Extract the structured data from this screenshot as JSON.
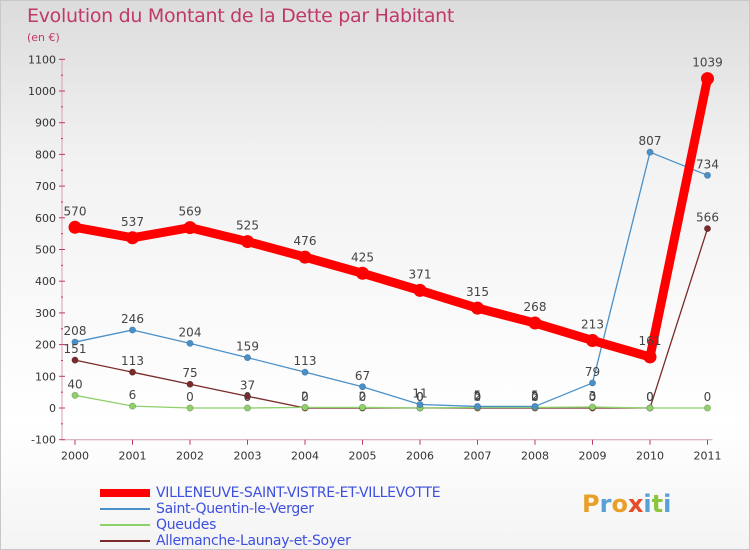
{
  "title": "Evolution du Montant de la Dette par Habitant",
  "subtitle": "(en €)",
  "logo": {
    "text": "Proxiti",
    "letters": [
      "P",
      "r",
      "o",
      "x",
      "i",
      "t",
      "i"
    ],
    "colors": [
      "#e8a02a",
      "#5aa0d8",
      "#e8a02a",
      "#e64c2a",
      "#5aa0d8",
      "#8cc63e",
      "#5aa0d8"
    ]
  },
  "chart_data": {
    "type": "line",
    "title": "Evolution du Montant de la Dette par Habitant",
    "ylabel": "(en €)",
    "xlabel": "",
    "x": [
      "2000",
      "2001",
      "2002",
      "2003",
      "2004",
      "2005",
      "2006",
      "2007",
      "2008",
      "2009",
      "2010",
      "2011"
    ],
    "ylim": [
      -100,
      1100
    ],
    "yticks": [
      "-100",
      "0",
      "100",
      "200",
      "300",
      "400",
      "500",
      "600",
      "700",
      "800",
      "900",
      "1000",
      "1100"
    ],
    "grid": false,
    "legend_position": "bottom-left",
    "series": [
      {
        "name": "VILLENEUVE-SAINT-VISTRE-ET-VILLEVOTTE",
        "color": "#ff0000",
        "values": [
          570,
          537,
          569,
          525,
          476,
          425,
          371,
          315,
          268,
          213,
          161,
          1039
        ],
        "labels": [
          "570",
          "537",
          "569",
          "525",
          "476",
          "425",
          "371",
          "315",
          "268",
          "213",
          "161",
          "1039"
        ]
      },
      {
        "name": "Saint-Quentin-le-Verger",
        "color": "#4a90c8",
        "values": [
          208,
          246,
          204,
          159,
          113,
          67,
          11,
          5,
          5,
          79,
          807,
          734
        ],
        "labels": [
          "208",
          "246",
          "204",
          "159",
          "113",
          "67",
          "11",
          "5",
          "5",
          "79",
          "807",
          "734"
        ]
      },
      {
        "name": "Queudes",
        "color": "#8ed06a",
        "values": [
          40,
          6,
          0,
          0,
          2,
          2,
          0,
          2,
          2,
          3,
          0,
          0
        ],
        "labels": [
          "40",
          "6",
          "0",
          "0",
          "2",
          "2",
          "0",
          "2",
          "2",
          "3",
          "0",
          "0"
        ]
      },
      {
        "name": "Allemanche-Launay-et-Soyer",
        "color": "#7a2a2a",
        "values": [
          151,
          113,
          75,
          37,
          0,
          0,
          0,
          0,
          0,
          0,
          0,
          566
        ],
        "labels": [
          "151",
          "113",
          "75",
          "37",
          "0",
          "0",
          "0",
          "0",
          "0",
          "0",
          "0",
          "566"
        ]
      }
    ]
  }
}
